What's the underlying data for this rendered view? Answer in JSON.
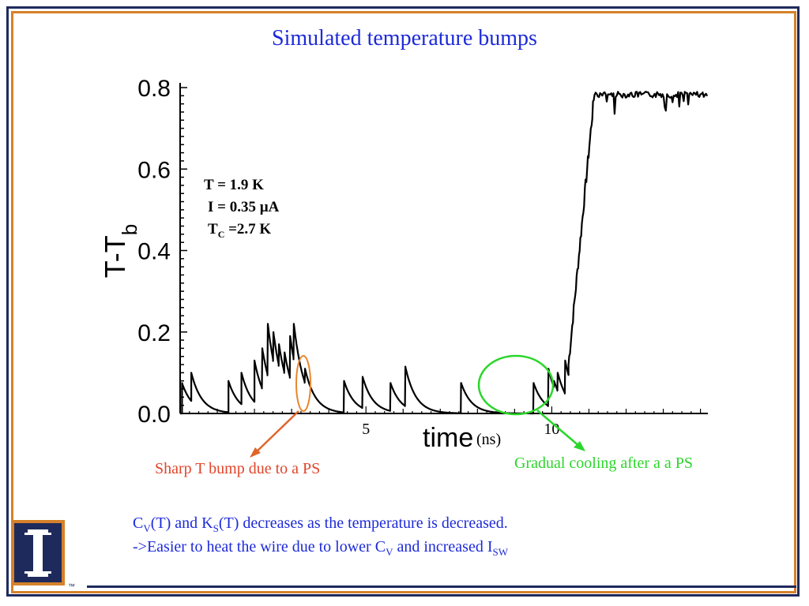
{
  "slide": {
    "title": "Simulated temperature bumps",
    "params": {
      "line1": "T = 1.9 K",
      "line2": "I = 0.35 µA",
      "line3_main": "T",
      "line3_sub": "C",
      "line3_rest": " =2.7 K"
    },
    "time_label": "time",
    "time_unit": "(ns)",
    "annotation_red": "Sharp T bump due to a PS",
    "annotation_green": "Gradual cooling after a a PS",
    "note_line1": {
      "a": "C",
      "a_sub": "V",
      "b": "(T) and K",
      "b_sub": "S",
      "c": "(T) decreases as the temperature is decreased."
    },
    "note_line2": {
      "a": "->Easier to heat the wire due to lower C",
      "a_sub": "V",
      "b": " and increased I",
      "b_sub": "SW"
    },
    "logo_tm": "™",
    "colors": {
      "title": "#1d2ad9",
      "frame_outer": "#1f2a5c",
      "frame_inner": "#d6812b",
      "red_anno": "#e0452a",
      "green_anno": "#2bd62b"
    }
  },
  "chart_data": {
    "type": "line",
    "title": "",
    "xlabel": "time",
    "ylabel": "T-T_b",
    "xlim": [
      0,
      14.2
    ],
    "ylim": [
      0,
      0.8
    ],
    "y_ticks": [
      "0.0",
      "0.2",
      "0.4",
      "0.6",
      "0.8"
    ],
    "x_ticks": [
      "5",
      "10"
    ],
    "grid": false,
    "pulses": [
      {
        "t": 0.05,
        "h": 0.075
      },
      {
        "t": 0.3,
        "h": 0.1
      },
      {
        "t": 1.3,
        "h": 0.08
      },
      {
        "t": 1.65,
        "h": 0.1
      },
      {
        "t": 2.0,
        "h": 0.13
      },
      {
        "t": 2.2,
        "h": 0.16
      },
      {
        "t": 2.35,
        "h": 0.22
      },
      {
        "t": 2.5,
        "h": 0.2
      },
      {
        "t": 2.65,
        "h": 0.17
      },
      {
        "t": 2.8,
        "h": 0.15
      },
      {
        "t": 2.95,
        "h": 0.19
      },
      {
        "t": 3.05,
        "h": 0.22
      },
      {
        "t": 3.35,
        "h": 0.11
      },
      {
        "t": 4.4,
        "h": 0.08
      },
      {
        "t": 4.9,
        "h": 0.09
      },
      {
        "t": 5.65,
        "h": 0.075
      },
      {
        "t": 6.05,
        "h": 0.115
      },
      {
        "t": 7.55,
        "h": 0.075
      },
      {
        "t": 9.5,
        "h": 0.075
      },
      {
        "t": 9.9,
        "h": 0.11
      },
      {
        "t": 10.05,
        "h": 0.08
      },
      {
        "t": 10.15,
        "h": 0.1
      },
      {
        "t": 10.35,
        "h": 0.13
      }
    ],
    "final_rise_start": 10.45,
    "final_rise_end": 11.15,
    "plateau_value": 0.79
  }
}
